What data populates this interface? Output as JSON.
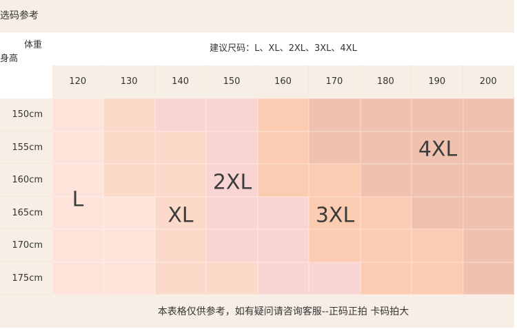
{
  "title": "选码参考",
  "corner": {
    "weight": "体重",
    "height": "身高"
  },
  "recommend": "建议尺码：L、XL、2XL、3XL、4XL",
  "weights": [
    "120",
    "130",
    "140",
    "150",
    "160",
    "170",
    "180",
    "190",
    "200"
  ],
  "heights": [
    "150cm",
    "155cm",
    "160cm",
    "165cm",
    "170cm",
    "175cm"
  ],
  "sizes": {
    "L": "L",
    "XL": "XL",
    "2XL": "2XL",
    "3XL": "3XL",
    "4XL": "4XL"
  },
  "grid_colors": [
    [
      "#fde3da",
      "#fcdac9",
      "#f8d5d2",
      "#f8d5d2",
      "#fbcbb2",
      "#f0c1ae",
      "#f0c1ae",
      "#f0c1ae",
      "#f0c1ae"
    ],
    [
      "#fde3da",
      "#fcdac9",
      "#fcdac9",
      "#f8d5d2",
      "#fbcbb2",
      "#f0c1ae",
      "#f0c1ae",
      "#f0c1ae",
      "#f0c1ae"
    ],
    [
      "#fde3da",
      "#fcdac9",
      "#fcdac9",
      "#f8d5d2",
      "#fbcbb2",
      "#fbcbb2",
      "#f0c1ae",
      "#f0c1ae",
      "#f0c1ae"
    ],
    [
      "#fde3da",
      "#fde3da",
      "#fcdac9",
      "#f8d5d2",
      "#f8d5d2",
      "#fbcbb2",
      "#fbcbb2",
      "#f0c1ae",
      "#f0c1ae"
    ],
    [
      "#fde3da",
      "#fde3da",
      "#fcdac9",
      "#f8d5d2",
      "#f8d5d2",
      "#fbcbb2",
      "#fbcbb2",
      "#fbcbb2",
      "#f0c1ae"
    ],
    [
      "#fde3da",
      "#fde3da",
      "#fcdac9",
      "#fcdac9",
      "#f8d5d2",
      "#f8d5d2",
      "#fbcbb2",
      "#fbcbb2",
      "#f0c1ae"
    ]
  ],
  "footer": "本表格仅供参考，如有疑问请咨询客服--正码正拍 卡码拍大"
}
